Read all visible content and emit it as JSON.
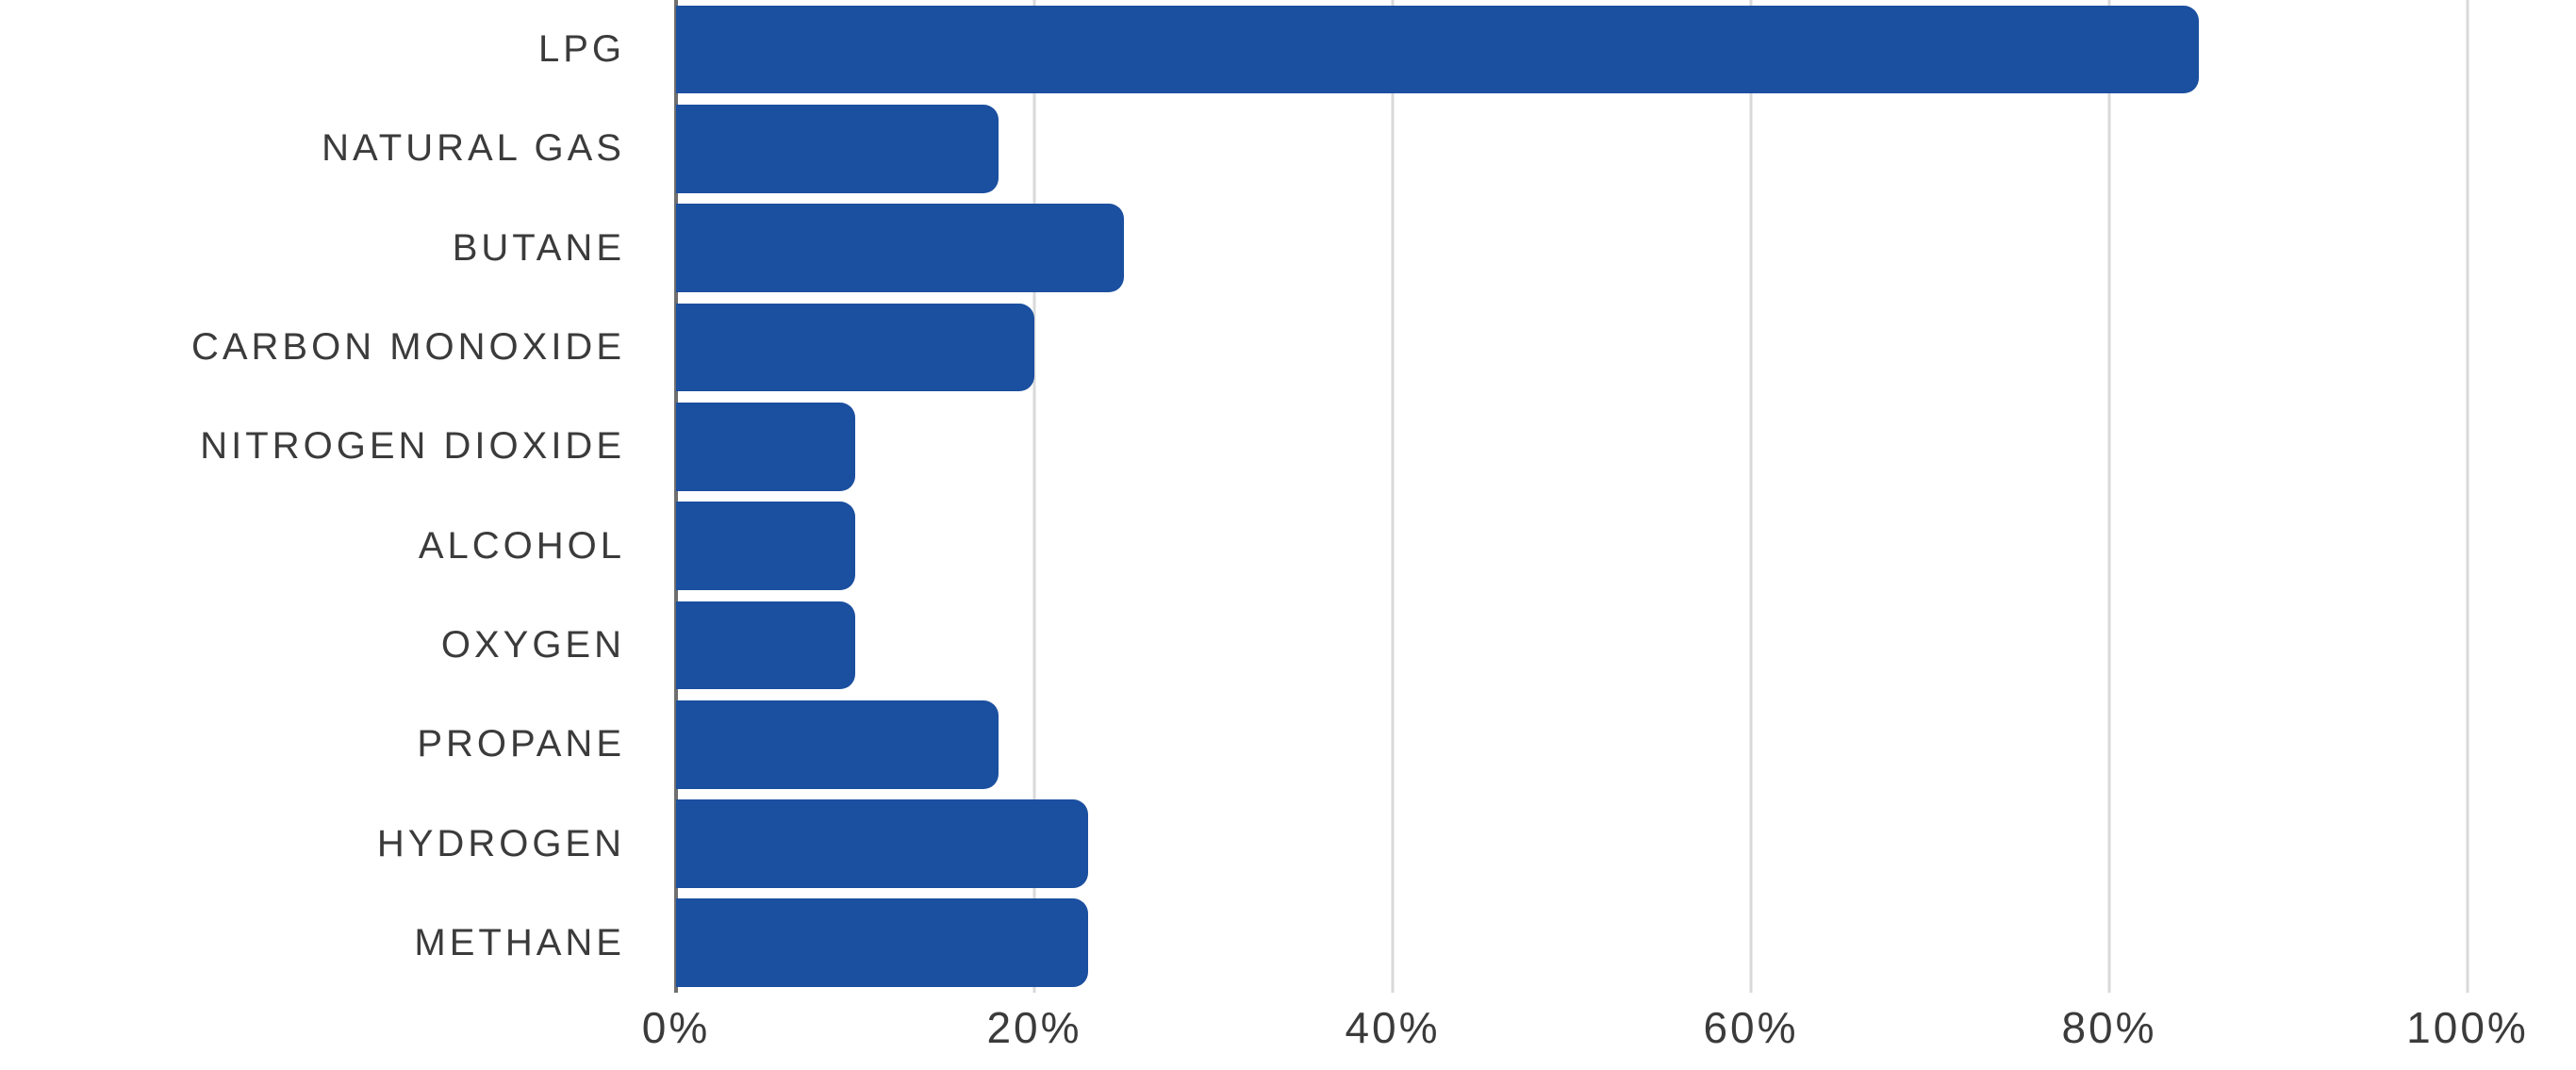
{
  "chart_data": {
    "type": "bar",
    "orientation": "horizontal",
    "title": "",
    "xlabel": "",
    "ylabel": "",
    "categories": [
      "LPG",
      "NATURAL GAS",
      "BUTANE",
      "CARBON MONOXIDE",
      "NITROGEN DIOXIDE",
      "ALCOHOL",
      "OXYGEN",
      "PROPANE",
      "HYDROGEN",
      "METHANE"
    ],
    "values": [
      85,
      18,
      25,
      20,
      10,
      10,
      10,
      18,
      23,
      23
    ],
    "unit": "%",
    "xlim": [
      0,
      100
    ],
    "x_tick_labels": [
      "0%",
      "20%",
      "40%",
      "60%",
      "80%",
      "100%"
    ],
    "x_tick_values": [
      0,
      20,
      40,
      60,
      80,
      100
    ],
    "grid": "vertical gridlines on, light gray",
    "legend": "none",
    "bar_color": "#1b4f9f",
    "gridline_color": "#d9d9d9",
    "axis_line_color": "#6e6e6e",
    "label_color": "#3b3b3b",
    "background_color": "#ffffff"
  }
}
